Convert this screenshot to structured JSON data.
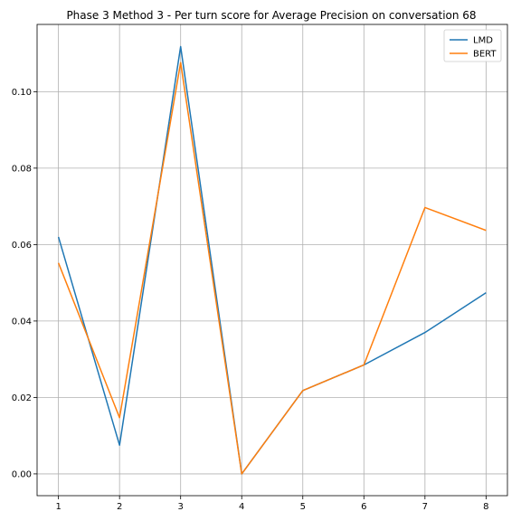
{
  "chart_data": {
    "type": "line",
    "title": "Phase 3 Method 3 - Per turn score for Average Precision on conversation 68",
    "xlabel": "",
    "ylabel": "",
    "x": [
      1,
      2,
      3,
      4,
      5,
      6,
      7,
      8
    ],
    "xlim": [
      0.65,
      8.35
    ],
    "ylim": [
      -0.0057,
      0.1176
    ],
    "yticks": [
      0.0,
      0.02,
      0.04,
      0.06,
      0.08,
      0.1
    ],
    "ytick_labels": [
      "0.00",
      "0.02",
      "0.04",
      "0.06",
      "0.08",
      "0.10"
    ],
    "xtick_labels": [
      "1",
      "2",
      "3",
      "4",
      "5",
      "6",
      "7",
      "8"
    ],
    "grid": true,
    "legend_position": "top-right",
    "series": [
      {
        "name": "LMD",
        "color": "#1f77b4",
        "values": [
          0.062,
          0.0075,
          0.1118,
          0.0,
          0.0218,
          0.0285,
          0.037,
          0.0474
        ]
      },
      {
        "name": "BERT",
        "color": "#ff7f0e",
        "values": [
          0.0552,
          0.0147,
          0.1076,
          0.0,
          0.0218,
          0.0285,
          0.0697,
          0.0637
        ]
      }
    ]
  }
}
